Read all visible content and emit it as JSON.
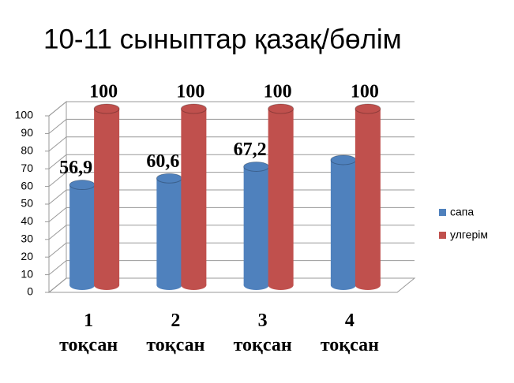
{
  "chart_data": {
    "type": "bar3d",
    "title": "10-11 сыныптар қазақ/бөлім",
    "categories": [
      "1 тоқсан",
      "2 тоқсан",
      "3 тоқсан",
      "4 тоқсан"
    ],
    "series": [
      {
        "name": "сапа",
        "color": "#4f81bd",
        "values": [
          56.9,
          60.6,
          67.2,
          71
        ],
        "value_labels": [
          "56,9",
          "60,6",
          "67,2",
          null
        ]
      },
      {
        "name": "улгерім",
        "color": "#c0504d",
        "values": [
          100,
          100,
          100,
          100
        ],
        "value_labels": [
          "100",
          "100",
          "100",
          "100"
        ]
      }
    ],
    "ylim": [
      0,
      100
    ],
    "yticks": [
      0,
      10,
      20,
      30,
      40,
      50,
      60,
      70,
      80,
      90,
      100
    ],
    "grid": true,
    "legend": "right"
  }
}
